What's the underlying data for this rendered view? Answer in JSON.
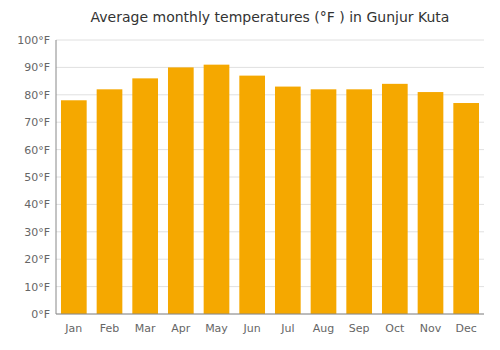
{
  "chart_data": {
    "type": "bar",
    "title": "Average monthly temperatures (°F ) in Gunjur Kuta",
    "categories": [
      "Jan",
      "Feb",
      "Mar",
      "Apr",
      "May",
      "Jun",
      "Jul",
      "Aug",
      "Sep",
      "Oct",
      "Nov",
      "Dec"
    ],
    "values": [
      78,
      82,
      86,
      90,
      91,
      87,
      83,
      82,
      82,
      84,
      81,
      77
    ],
    "color": "#F5A800",
    "ylim": [
      0,
      100
    ],
    "yticks": [
      {
        "value": 0,
        "label": "0°F"
      },
      {
        "value": 10,
        "label": "10°F"
      },
      {
        "value": 20,
        "label": "20°F"
      },
      {
        "value": 30,
        "label": "30°F"
      },
      {
        "value": 40,
        "label": "40°F"
      },
      {
        "value": 50,
        "label": "50°F"
      },
      {
        "value": 60,
        "label": "60°F"
      },
      {
        "value": 70,
        "label": "70°F"
      },
      {
        "value": 80,
        "label": "80°F"
      },
      {
        "value": 90,
        "label": "90°F"
      },
      {
        "value": 100,
        "label": "100°F"
      }
    ],
    "grid": true
  }
}
